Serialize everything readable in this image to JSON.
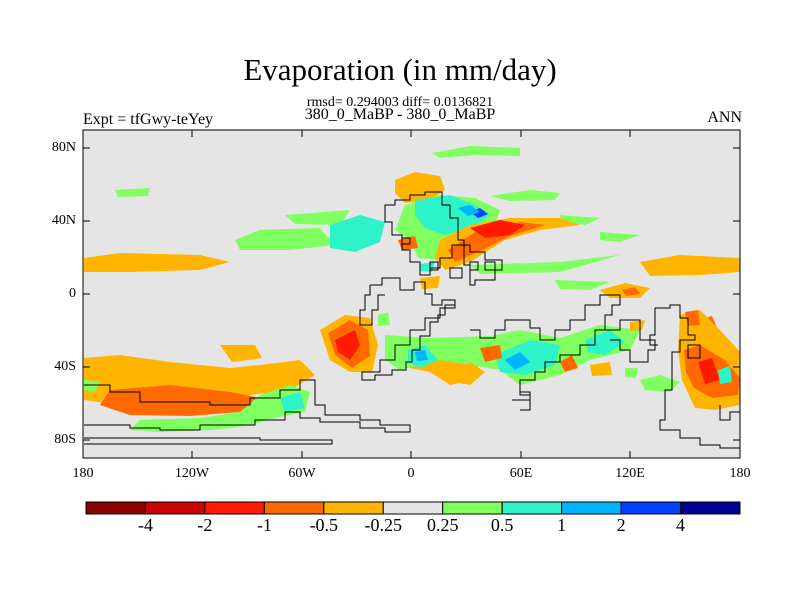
{
  "title": "Evaporation (in mm/day)",
  "stats_line": "rmsd= 0.294003 diff= 0.0136821",
  "case_pair": "380_0_MaBP - 380_0_MaBP",
  "experiment_label": "Expt = tfGwy-teYey",
  "season_label": "ANN",
  "latitude_labels": [
    "80N",
    "40N",
    "0",
    "40S",
    "80S"
  ],
  "longitude_labels": [
    "180",
    "120W",
    "60W",
    "0",
    "60E",
    "120E",
    "180"
  ],
  "colorbar": {
    "colors": [
      "#8b0000",
      "#cd0000",
      "#ff1a00",
      "#ff6a00",
      "#ffb400",
      "#e5e5e5",
      "#80ff60",
      "#2ef2c8",
      "#00b4ff",
      "#0040ff",
      "#000090"
    ],
    "tick_labels": [
      "-4",
      "-2",
      "-1",
      "-0.5",
      "-0.25",
      "0.25",
      "0.5",
      "1",
      "2",
      "4"
    ]
  },
  "colors": {
    "background": "#e5e5e5",
    "orange": "#ffb400",
    "dark_orange": "#ff6a00",
    "red": "#ff1a00",
    "green": "#80ff60",
    "cyan": "#2ef2c8",
    "light_blue": "#00b4ff",
    "blue": "#0040ff",
    "coast": "#000000"
  }
}
